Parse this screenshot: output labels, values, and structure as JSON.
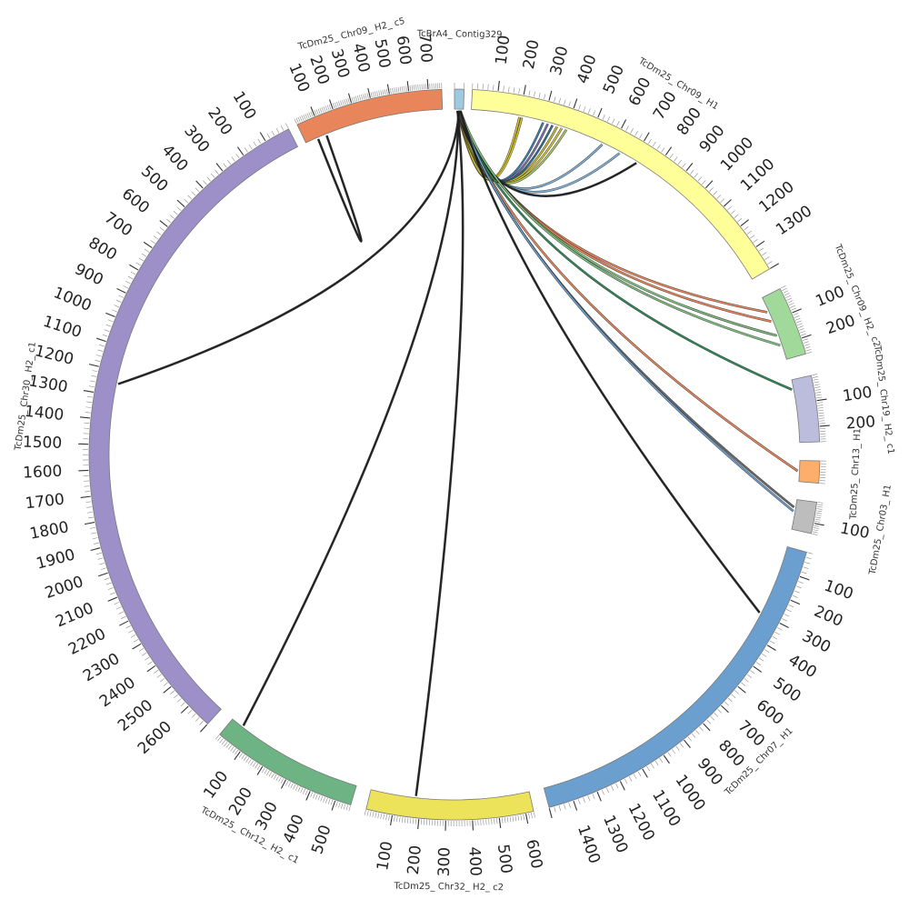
{
  "diagram": {
    "type": "circos",
    "segments": [
      {
        "id": "contig329",
        "label": "TcBrA4_ Contig329",
        "color": "#9ecae1",
        "length": 10,
        "ticks": []
      },
      {
        "id": "chr09_h1",
        "label": "TcDm25_ Chr09_ H1",
        "color": "#ffff99",
        "length": 1400,
        "ticks": [
          100,
          200,
          300,
          400,
          500,
          600,
          700,
          800,
          900,
          1000,
          1100,
          1200,
          1300
        ]
      },
      {
        "id": "chr09_h2_c2",
        "label": "TcDm25_ Chr09_ H2_ c2",
        "color": "#a1d99b",
        "length": 260,
        "ticks": [
          100,
          200
        ]
      },
      {
        "id": "chr19_h2",
        "label": "TcDm25_ Chr19_ H2_ c1",
        "color": "#bcbddc",
        "length": 260,
        "ticks": [
          100,
          200
        ]
      },
      {
        "id": "small_orange",
        "label": "TcDm25_ Chr13_ H1",
        "color": "#fdae6b",
        "length": 80,
        "ticks": []
      },
      {
        "id": "small_gray",
        "label": "TcDm25_ Chr03_ H1",
        "color": "#bdbdbd",
        "length": 150,
        "ticks": [
          100
        ]
      },
      {
        "id": "chr07_h1",
        "label": "TcDm25_ Chr07_ H1",
        "color": "#6a9fcf",
        "length": 1500,
        "ticks": [
          100,
          200,
          300,
          400,
          500,
          600,
          700,
          800,
          900,
          1000,
          1100,
          1200,
          1300,
          1400
        ]
      },
      {
        "id": "chr32_h2_c2",
        "label": "TcDm25_ Chr32_ H2_ c2",
        "color": "#ece35a",
        "length": 630,
        "ticks": [
          100,
          200,
          300,
          400,
          500,
          600
        ]
      },
      {
        "id": "chr12_h2_c1",
        "label": "TcDm25_ Chr12_ H2_ c1",
        "color": "#6db384",
        "length": 560,
        "ticks": [
          100,
          200,
          300,
          400,
          500
        ]
      },
      {
        "id": "chr30_h2_c1",
        "label": "TcDm25_ Chr30_ H2_ c1",
        "color": "#9d8fc8",
        "length": 2700,
        "ticks": [
          100,
          200,
          300,
          400,
          500,
          600,
          700,
          800,
          900,
          1000,
          1100,
          1200,
          1300,
          1400,
          1500,
          1600,
          1700,
          1800,
          1900,
          2000,
          2100,
          2200,
          2300,
          2400,
          2500,
          2600
        ]
      },
      {
        "id": "chr09_h2_c5",
        "label": "TcDm25_ Chr09_ H2_ c5",
        "color": "#e8855a",
        "length": 770,
        "ticks": [
          100,
          200,
          300,
          400,
          500,
          600,
          700
        ]
      }
    ],
    "links": [
      {
        "to": "chr09_h1",
        "pos": 200,
        "color": "#d4c430"
      },
      {
        "to": "chr09_h1",
        "pos": 210,
        "color": "#d4c430"
      },
      {
        "to": "chr09_h1",
        "pos": 300,
        "color": "#3a7fb5"
      },
      {
        "to": "chr09_h1",
        "pos": 320,
        "color": "#7a6fb0"
      },
      {
        "to": "chr09_h1",
        "pos": 340,
        "color": "#2f6f8f"
      },
      {
        "to": "chr09_h1",
        "pos": 360,
        "color": "#c8b830"
      },
      {
        "to": "chr09_h1",
        "pos": 380,
        "color": "#d4c430"
      },
      {
        "to": "chr09_h1",
        "pos": 400,
        "color": "#a8c860"
      },
      {
        "to": "chr09_h1",
        "pos": 560,
        "color": "#7fb2d9"
      },
      {
        "to": "chr09_h1",
        "pos": 640,
        "color": "#7fb2d9"
      },
      {
        "to": "chr09_h1",
        "pos": 720,
        "color": "#222222"
      },
      {
        "to": "chr09_h2_c2",
        "pos": 60,
        "color": "#e8855a"
      },
      {
        "to": "chr09_h2_c2",
        "pos": 100,
        "color": "#e8855a"
      },
      {
        "to": "chr09_h2_c2",
        "pos": 160,
        "color": "#7fc07f"
      },
      {
        "to": "chr09_h2_c2",
        "pos": 200,
        "color": "#7fc07f"
      },
      {
        "to": "chr19_h2",
        "pos": 40,
        "color": "#2e8b57"
      },
      {
        "to": "small_orange",
        "pos": 40,
        "color": "#e8855a"
      },
      {
        "to": "small_gray",
        "pos": 40,
        "color": "#6a6a6a"
      },
      {
        "to": "small_gray",
        "pos": 60,
        "color": "#6a9fcf"
      },
      {
        "to": "chr07_h1",
        "pos": 300,
        "color": "#222222"
      },
      {
        "to": "chr32_h2_c2",
        "pos": 180,
        "color": "#222222"
      },
      {
        "to": "chr12_h2_c1",
        "pos": 50,
        "color": "#222222"
      },
      {
        "to": "chr30_h2_c1",
        "pos": 1250,
        "color": "#222222"
      },
      {
        "to": "chr09_h2_c5",
        "pos": 70,
        "color": "#222222",
        "from_seg": "chr09_h2_c5",
        "from_pos": 120,
        "loop": true
      }
    ]
  }
}
